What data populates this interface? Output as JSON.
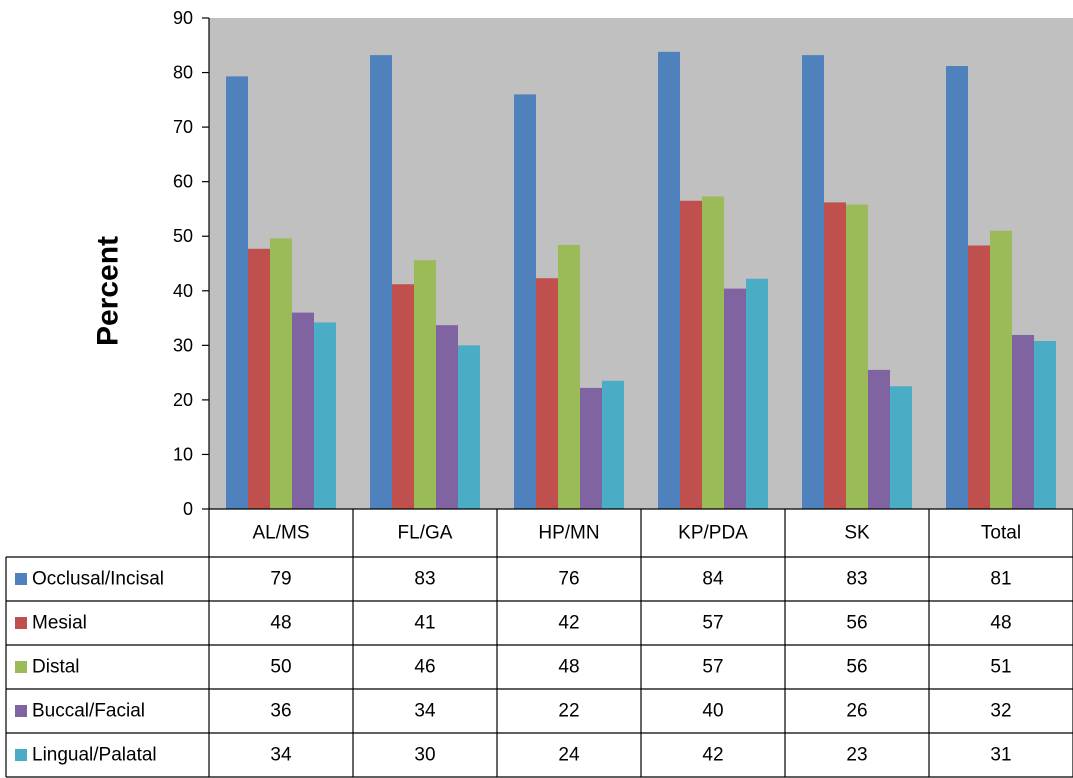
{
  "chart_data": {
    "type": "bar",
    "title": "",
    "xlabel": "",
    "ylabel": "Percent",
    "ylim": [
      0,
      90
    ],
    "y_ticks": [
      0,
      10,
      20,
      30,
      40,
      50,
      60,
      70,
      80,
      90
    ],
    "grid": false,
    "plot_background": "#c0c0c0",
    "legend": "data-table",
    "categories": [
      "AL/MS",
      "FL/GA",
      "HP/MN",
      "KP/PDA",
      "SK",
      "Total"
    ],
    "series": [
      {
        "name": "Occlusal/Incisal",
        "color": "#4f81bd",
        "values": [
          79.3,
          83.2,
          76,
          83.8,
          83.2,
          81.2
        ],
        "labels": [
          "79",
          "83",
          "76",
          "84",
          "83",
          "81"
        ]
      },
      {
        "name": "Mesial",
        "color": "#c0504d",
        "values": [
          47.7,
          41.2,
          42.3,
          56.5,
          56.2,
          48.3
        ],
        "labels": [
          "48",
          "41",
          "42",
          "57",
          "56",
          "48"
        ]
      },
      {
        "name": "Distal",
        "color": "#9bbb59",
        "values": [
          49.6,
          45.6,
          48.4,
          57.3,
          55.8,
          51
        ],
        "labels": [
          "50",
          "46",
          "48",
          "57",
          "56",
          "51"
        ]
      },
      {
        "name": "Buccal/Facial",
        "color": "#8064a2",
        "values": [
          36,
          33.7,
          22.2,
          40.4,
          25.5,
          31.9
        ],
        "labels": [
          "36",
          "34",
          "22",
          "40",
          "26",
          "32"
        ]
      },
      {
        "name": "Lingual/Palatal",
        "color": "#4bacc6",
        "values": [
          34.2,
          30,
          23.5,
          42.2,
          22.5,
          30.8
        ],
        "labels": [
          "34",
          "30",
          "24",
          "42",
          "23",
          "31"
        ]
      }
    ]
  }
}
